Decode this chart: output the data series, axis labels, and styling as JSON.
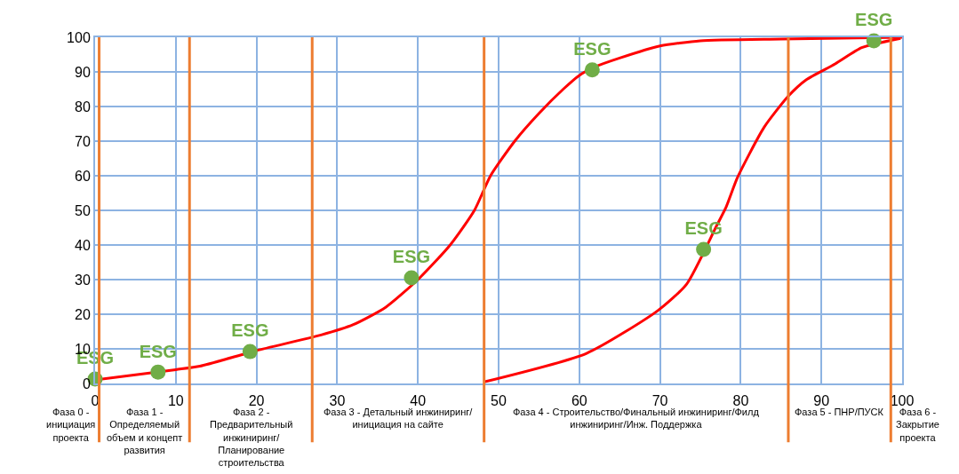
{
  "chart_data": {
    "type": "line",
    "xlim": [
      0,
      100
    ],
    "xticks": [
      0,
      10,
      20,
      30,
      40,
      50,
      60,
      70,
      80,
      90,
      100
    ],
    "ylim": [
      0,
      100
    ],
    "yticks": [
      0,
      10,
      20,
      30,
      40,
      50,
      60,
      70,
      80,
      90,
      100
    ],
    "grid": true,
    "series": [
      {
        "color": "#ff0000",
        "x": [
          0,
          10,
          13,
          20,
          28,
          32,
          36,
          40,
          44,
          47,
          49,
          52,
          55,
          58,
          60,
          62,
          65,
          70,
          75,
          85,
          100
        ],
        "values": [
          1,
          4,
          5,
          9.5,
          14,
          17,
          22,
          30,
          40,
          50,
          60,
          70,
          78,
          85,
          89,
          91.5,
          94,
          97.5,
          99,
          99.5,
          100
        ]
      },
      {
        "color": "#ff0000",
        "x": [
          48.3,
          60.9,
          69.7,
          73.3,
          77,
          78.2,
          79.6,
          82.9,
          85.9,
          88.1,
          91.7,
          95,
          99.8
        ],
        "values": [
          0.5,
          8.7,
          21,
          28.7,
          45.5,
          51,
          59.5,
          74,
          83,
          87.7,
          92.3,
          97,
          99.7
        ]
      },
      {
        "type": "scatter",
        "color": "#70ad47",
        "x": [
          0,
          7.8,
          19.2,
          39.2,
          61.6,
          75.4,
          96.5
        ],
        "values": [
          1.3,
          3.3,
          9.2,
          30.5,
          90.6,
          38.7,
          99
        ],
        "value_labels": [
          "ESG",
          "ESG",
          "ESG",
          "ESG",
          "ESG",
          "ESG",
          "ESG"
        ]
      }
    ],
    "ref_lines": [
      {
        "axis": "x",
        "value": 0.5,
        "color": "#ed7d31"
      },
      {
        "axis": "x",
        "value": 11.7,
        "color": "#ed7d31"
      },
      {
        "axis": "x",
        "value": 26.9,
        "color": "#ed7d31"
      },
      {
        "axis": "x",
        "value": 48.2,
        "color": "#ed7d31"
      },
      {
        "axis": "x",
        "value": 85.9,
        "color": "#ed7d31"
      },
      {
        "axis": "x",
        "value": 98.6,
        "color": "#ed7d31"
      }
    ],
    "annotations": [
      "Фаза 0 - инициация проекта",
      "Фаза 1 - Определяемый объем и концепт развития",
      "Фаза 2 - Предварительный инжиниринг/ Планирование строительства",
      "Фаза 3 - Детальный инжиниринг/ инициация на сайте",
      "Фаза 4 - Строительство/Финальный инжиниринг/Филд инжиниринг/Инж. Поддержка",
      "Фаза 5 - ПНР/ПУСК",
      "Фаза 6 - Закрытие проекта"
    ]
  }
}
